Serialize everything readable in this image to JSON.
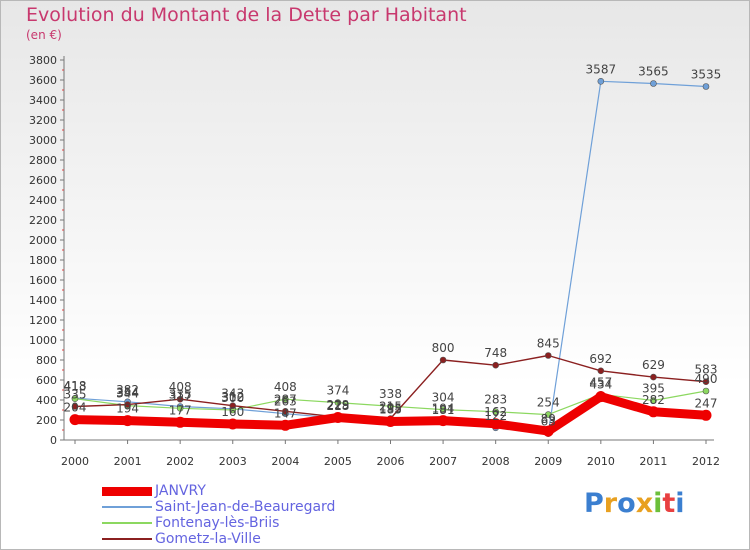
{
  "page": {
    "title": "Evolution du Montant de la Dette par Habitant",
    "subtitle": "(en €)",
    "brand": "Proxiti"
  },
  "colors": {
    "title": "#c8386e",
    "legend_text": "#6464e0",
    "axis": "#777777",
    "label": "#444444"
  },
  "chart_data": {
    "type": "line",
    "title": "Evolution du Montant de la Dette par Habitant",
    "subtitle": "(en €)",
    "x": [
      "2000",
      "2001",
      "2002",
      "2003",
      "2004",
      "2005",
      "2006",
      "2007",
      "2008",
      "2009",
      "2010",
      "2011",
      "2012"
    ],
    "yticks": [
      "0",
      "200",
      "400",
      "600",
      "800",
      "1000",
      "1200",
      "1400",
      "1600",
      "1800",
      "2000",
      "2200",
      "2400",
      "2600",
      "2800",
      "3000",
      "3200",
      "3400",
      "3600",
      "3800"
    ],
    "ylim": [
      0,
      3800
    ],
    "grid": false,
    "legend_position": "bottom-left",
    "series": [
      {
        "name": "JANVRY",
        "color": "#ee0000",
        "values": [
          204,
          194,
          177,
          160,
          147,
          225,
          185,
          194,
          162,
          89,
          434,
          282,
          247
        ],
        "labels": [
          "204",
          "194",
          "177",
          "160",
          "147",
          "225",
          "185",
          "194",
          "162",
          "89",
          "434",
          "282",
          "247"
        ]
      },
      {
        "name": "Saint-Jean-de-Beauregard",
        "color": "#6fa0d8",
        "values": [
          418,
          382,
          335,
          312,
          263,
          218,
          195,
          181,
          122,
          63,
          3587,
          3565,
          3535
        ],
        "labels": [
          "418",
          "382",
          "335",
          "312",
          "263",
          "218",
          "195",
          "181",
          "122",
          "63",
          "3587",
          "3565",
          "3535"
        ]
      },
      {
        "name": "Fontenay-lès-Briis",
        "color": "#8cd860",
        "values": [
          413,
          344,
          317,
          300,
          408,
          374,
          338,
          304,
          283,
          254,
          457,
          395,
          490
        ],
        "labels": [
          "413",
          "344",
          "317",
          "300",
          "408",
          "374",
          "338",
          "304",
          "283",
          "254",
          "457",
          "395",
          "490"
        ]
      },
      {
        "name": "Gometz-la-Ville",
        "color": "#8b2020",
        "values": [
          335,
          354,
          408,
          343,
          287,
          229,
          215,
          800,
          748,
          845,
          692,
          629,
          583
        ],
        "labels": [
          "335",
          "354",
          "408",
          "343",
          "287",
          "229",
          "215",
          "800",
          "748",
          "845",
          "692",
          "629",
          "583"
        ]
      }
    ]
  }
}
